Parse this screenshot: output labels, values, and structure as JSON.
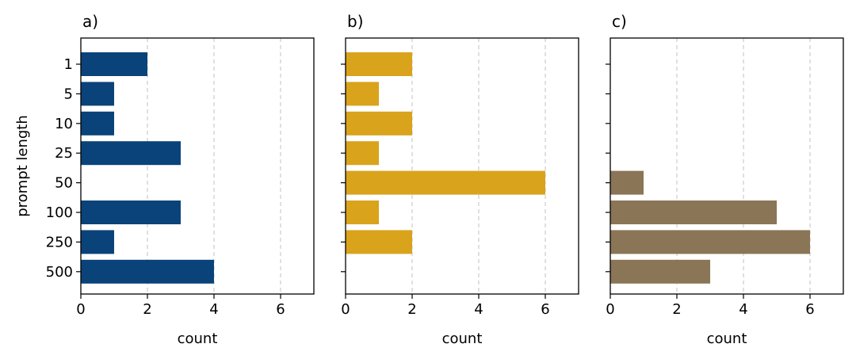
{
  "chart_data": [
    {
      "type": "bar",
      "orientation": "horizontal",
      "panel_label": "a)",
      "categories": [
        "1",
        "5",
        "10",
        "25",
        "50",
        "100",
        "250",
        "500"
      ],
      "values": [
        2,
        1,
        1,
        3,
        0,
        3,
        1,
        4
      ],
      "ylabel": "prompt length",
      "xlabel": "count",
      "xlim": [
        0,
        7
      ],
      "xticks": [
        "0",
        "2",
        "4",
        "6"
      ],
      "grid": "vertical dashed",
      "color": "#0a437a"
    },
    {
      "type": "bar",
      "orientation": "horizontal",
      "panel_label": "b)",
      "categories": [
        "1",
        "5",
        "10",
        "25",
        "50",
        "100",
        "250",
        "500"
      ],
      "values": [
        2,
        1,
        2,
        1,
        6,
        1,
        2,
        0
      ],
      "ylabel": "",
      "xlabel": "count",
      "xlim": [
        0,
        7
      ],
      "xticks": [
        "0",
        "2",
        "4",
        "6"
      ],
      "grid": "vertical dashed",
      "color": "#d9a31c"
    },
    {
      "type": "bar",
      "orientation": "horizontal",
      "panel_label": "c)",
      "categories": [
        "1",
        "5",
        "10",
        "25",
        "50",
        "100",
        "250",
        "500"
      ],
      "values": [
        0,
        0,
        0,
        0,
        1,
        5,
        6,
        3
      ],
      "ylabel": "",
      "xlabel": "count",
      "xlim": [
        0,
        7
      ],
      "xticks": [
        "0",
        "2",
        "4",
        "6"
      ],
      "grid": "vertical dashed",
      "color": "#8a7556"
    }
  ]
}
